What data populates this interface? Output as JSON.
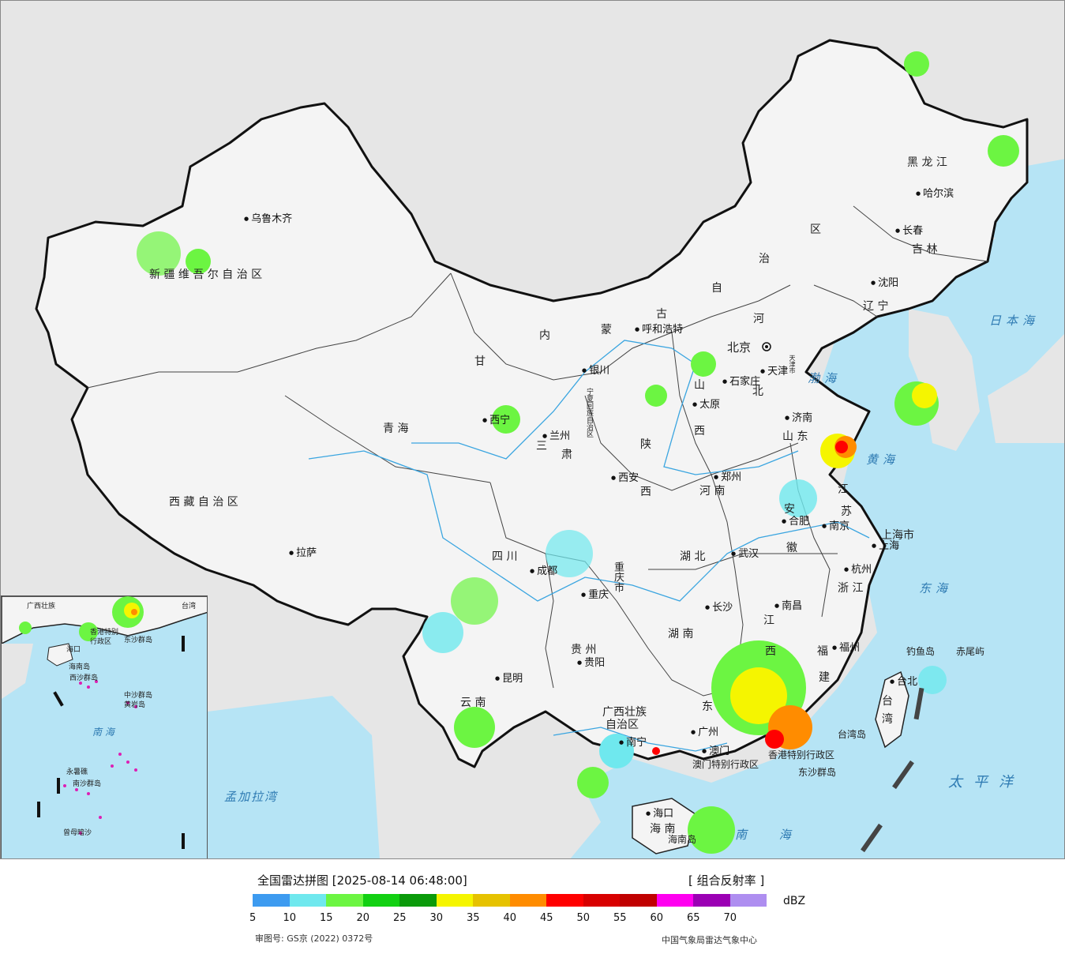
{
  "map": {
    "regions": [
      {
        "key": "xinjiang",
        "label": "新 疆 维 吾 尔 自 治 区"
      },
      {
        "key": "xizang",
        "label": "西 藏 自 治 区"
      },
      {
        "key": "qinghai",
        "label": "青    海"
      },
      {
        "key": "gansu_1",
        "label": "甘"
      },
      {
        "key": "gansu_2",
        "label": "肃"
      },
      {
        "key": "neimeng_1",
        "label": "内"
      },
      {
        "key": "neimeng_2",
        "label": "蒙"
      },
      {
        "key": "neimeng_3",
        "label": "古"
      },
      {
        "key": "neimeng_4",
        "label": "自"
      },
      {
        "key": "neimeng_5",
        "label": "治"
      },
      {
        "key": "neimeng_6",
        "label": "区"
      },
      {
        "key": "heilongjiang",
        "label": "黑  龙  江"
      },
      {
        "key": "jilin",
        "label": "吉  林"
      },
      {
        "key": "liaoning",
        "label": "辽  宁"
      },
      {
        "key": "hebei_1",
        "label": "河"
      },
      {
        "key": "hebei_2",
        "label": "北"
      },
      {
        "key": "shanxi_1",
        "label": "山"
      },
      {
        "key": "shanxi_2",
        "label": "西"
      },
      {
        "key": "shaanxi_1",
        "label": "陕"
      },
      {
        "key": "shaanxi_2",
        "label": "西"
      },
      {
        "key": "ningxia",
        "label": "宁夏回族自治区"
      },
      {
        "key": "shandong",
        "label": "山  东"
      },
      {
        "key": "henan",
        "label": "河  南"
      },
      {
        "key": "jiangsu_1",
        "label": "江"
      },
      {
        "key": "jiangsu_2",
        "label": "苏"
      },
      {
        "key": "anhui_1",
        "label": "安"
      },
      {
        "key": "anhui_2",
        "label": "徽"
      },
      {
        "key": "shanghai",
        "label": "上海市"
      },
      {
        "key": "zhejiang",
        "label": "浙  江"
      },
      {
        "key": "hubei",
        "label": "湖  北"
      },
      {
        "key": "hunan",
        "label": "湖  南"
      },
      {
        "key": "jiangxi_1",
        "label": "江"
      },
      {
        "key": "jiangxi_2",
        "label": "西"
      },
      {
        "key": "fujian_1",
        "label": "福"
      },
      {
        "key": "fujian_2",
        "label": "建"
      },
      {
        "key": "sichuan",
        "label": "四    川"
      },
      {
        "key": "chongqing",
        "label": "重庆市"
      },
      {
        "key": "guizhou",
        "label": "贵  州"
      },
      {
        "key": "yunnan",
        "label": "云    南"
      },
      {
        "key": "guangxi_1",
        "label": "广西壮族"
      },
      {
        "key": "guangxi_2",
        "label": "自治区"
      },
      {
        "key": "guangdong",
        "label": "东"
      },
      {
        "key": "hainan",
        "label": "海  南"
      },
      {
        "key": "taiwan_1",
        "label": "台"
      },
      {
        "key": "taiwan_2",
        "label": "湾"
      },
      {
        "key": "tianjin",
        "label": "天津市"
      },
      {
        "key": "hk_macau",
        "label": "澳门特别行政区"
      },
      {
        "key": "hk",
        "label": "香港特别行政区"
      },
      {
        "key": "gansu_3",
        "label": "三"
      }
    ],
    "cities": [
      {
        "key": "urumqi",
        "label": "乌鲁木齐"
      },
      {
        "key": "lhasa",
        "label": "拉萨"
      },
      {
        "key": "xining",
        "label": "西宁"
      },
      {
        "key": "lanzhou",
        "label": "兰州"
      },
      {
        "key": "yinchuan",
        "label": "银川"
      },
      {
        "key": "hohhot",
        "label": "呼和浩特"
      },
      {
        "key": "harbin",
        "label": "哈尔滨"
      },
      {
        "key": "changchun",
        "label": "长春"
      },
      {
        "key": "shenyang",
        "label": "沈阳"
      },
      {
        "key": "beijing",
        "label": "北京"
      },
      {
        "key": "tianjin",
        "label": "天津"
      },
      {
        "key": "shijiazhuang",
        "label": "石家庄"
      },
      {
        "key": "taiyuan",
        "label": "太原"
      },
      {
        "key": "jinan",
        "label": "济南"
      },
      {
        "key": "xian",
        "label": "西安"
      },
      {
        "key": "zhengzhou",
        "label": "郑州"
      },
      {
        "key": "hefei",
        "label": "合肥"
      },
      {
        "key": "nanjing",
        "label": "南京"
      },
      {
        "key": "shanghai",
        "label": "上海"
      },
      {
        "key": "hangzhou",
        "label": "杭州"
      },
      {
        "key": "wuhan",
        "label": "武汉"
      },
      {
        "key": "chengdu",
        "label": "成都"
      },
      {
        "key": "chongqing",
        "label": "重庆"
      },
      {
        "key": "changsha",
        "label": "长沙"
      },
      {
        "key": "nanchang",
        "label": "南昌"
      },
      {
        "key": "fuzhou",
        "label": "福州"
      },
      {
        "key": "guiyang",
        "label": "贵阳"
      },
      {
        "key": "kunming",
        "label": "昆明"
      },
      {
        "key": "nanning",
        "label": "南宁"
      },
      {
        "key": "guangzhou",
        "label": "广州"
      },
      {
        "key": "macau",
        "label": "澳门"
      },
      {
        "key": "haikou",
        "label": "海口"
      },
      {
        "key": "taibei",
        "label": "台北"
      }
    ],
    "islands": [
      {
        "key": "diaoyu",
        "label": "钓鱼岛"
      },
      {
        "key": "chiwei",
        "label": "赤尾屿"
      },
      {
        "key": "taiwan_island",
        "label": "台湾岛"
      },
      {
        "key": "dongsha",
        "label": "东沙群岛"
      },
      {
        "key": "hainan_island",
        "label": "海南岛"
      }
    ],
    "seas": [
      {
        "key": "japan_sea",
        "label": "日本海"
      },
      {
        "key": "bohai",
        "label": "渤海"
      },
      {
        "key": "yellow_sea",
        "label": "黄海"
      },
      {
        "key": "east_sea",
        "label": "东海"
      },
      {
        "key": "pacific",
        "label": "太平洋"
      },
      {
        "key": "south_sea",
        "label": "南  海"
      },
      {
        "key": "bengal",
        "label": "孟加拉湾"
      }
    ],
    "inset": {
      "labels": [
        "广西壮族",
        "台湾",
        "香港特别",
        "行政区",
        "东沙群岛",
        "海口",
        "海南岛",
        "中沙群岛",
        "黄岩岛",
        "南  海",
        "永暑礁",
        "南沙群岛",
        "曾母暗沙",
        "西沙群岛"
      ]
    }
  },
  "legend": {
    "title": "全国雷达拼图 [2025-08-14 06:48:00]",
    "product": "[ 组合反射率 ]",
    "unit": "dBZ",
    "ticks": [
      "5",
      "10",
      "15",
      "20",
      "25",
      "30",
      "35",
      "40",
      "45",
      "50",
      "55",
      "60",
      "65",
      "70"
    ],
    "colors": [
      "#3d9bf0",
      "#6fe8ee",
      "#6cf542",
      "#12d012",
      "#0a9a0a",
      "#f5f500",
      "#e6c200",
      "#ff8c00",
      "#ff0000",
      "#d80000",
      "#c00000",
      "#ff00f0",
      "#9b00b4",
      "#ae8ef0"
    ]
  },
  "footer": {
    "approval": "审图号: GS京 (2022) 0372号",
    "agency": "中国气象局雷达气象中心"
  }
}
